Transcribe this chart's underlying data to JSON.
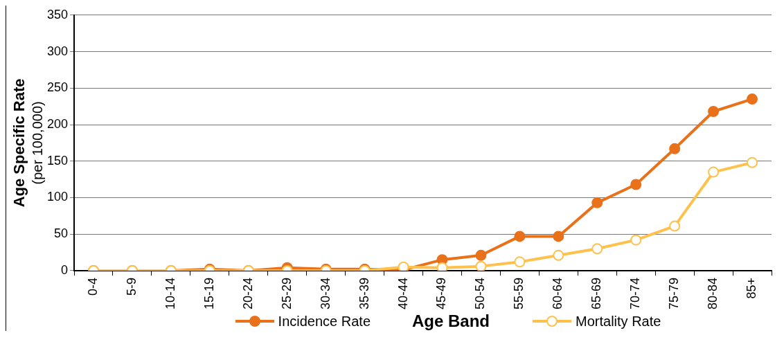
{
  "chart_data": {
    "type": "line",
    "xlabel": "Age Band",
    "ylabel": "Age Specific Rate\n(per 100,000)",
    "categories": [
      "0-4",
      "5-9",
      "10-14",
      "15-19",
      "20-24",
      "25-29",
      "30-34",
      "35-39",
      "40-44",
      "45-49",
      "50-54",
      "55-59",
      "60-64",
      "65-69",
      "70-74",
      "75-79",
      "80-84",
      "85+"
    ],
    "series": [
      {
        "name": "Incidence Rate",
        "color": "#e8711a",
        "values": [
          0,
          0,
          0,
          2,
          0,
          4,
          2,
          2,
          1,
          15,
          21,
          47,
          47,
          93,
          118,
          167,
          218,
          235
        ]
      },
      {
        "name": "Mortality Rate",
        "color": "#fdc14c",
        "values": [
          0,
          0,
          0,
          0,
          0,
          0,
          0,
          0,
          5,
          4,
          6,
          12,
          21,
          30,
          42,
          61,
          135,
          148
        ]
      }
    ],
    "ylim": [
      0,
      350
    ],
    "yticks": [
      0,
      50,
      100,
      150,
      200,
      250,
      300,
      350
    ],
    "grid": "y",
    "legend": "bottom",
    "marker": "circle",
    "line_style": "solid"
  }
}
